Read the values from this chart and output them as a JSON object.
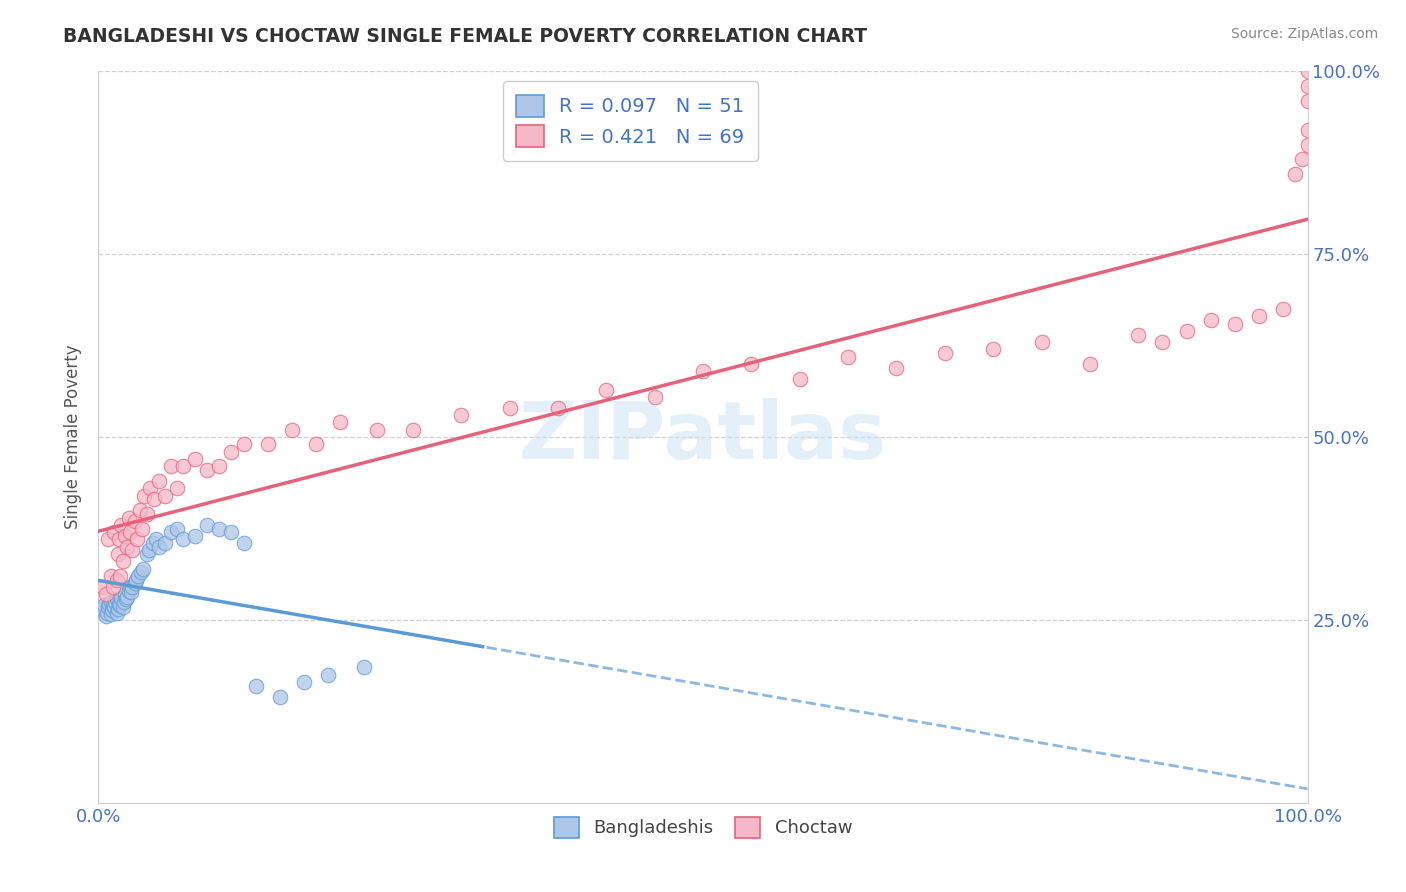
{
  "title": "BANGLADESHI VS CHOCTAW SINGLE FEMALE POVERTY CORRELATION CHART",
  "source": "Source: ZipAtlas.com",
  "ylabel": "Single Female Poverty",
  "watermark": "ZIPatlas",
  "blue_face": "#aec6e8",
  "blue_edge": "#5b9bd5",
  "pink_face": "#f4b8c8",
  "pink_edge": "#e8617a",
  "blue_line": "#5b9bd5",
  "pink_line": "#e8617a",
  "grid_color": "#d0d0d0",
  "tick_color": "#4472c4",
  "title_color": "#333333",
  "source_color": "#888888",
  "ylabel_color": "#555555",
  "legend_r1": "R = 0.097",
  "legend_n1": "N = 51",
  "legend_r2": "R = 0.421",
  "legend_n2": "N = 69",
  "blue_x": [
    0.003,
    0.005,
    0.006,
    0.007,
    0.008,
    0.009,
    0.01,
    0.01,
    0.011,
    0.012,
    0.013,
    0.014,
    0.015,
    0.015,
    0.016,
    0.017,
    0.018,
    0.019,
    0.02,
    0.021,
    0.022,
    0.023,
    0.024,
    0.025,
    0.026,
    0.027,
    0.028,
    0.03,
    0.031,
    0.033,
    0.035,
    0.037,
    0.04,
    0.042,
    0.045,
    0.048,
    0.05,
    0.055,
    0.06,
    0.065,
    0.07,
    0.08,
    0.09,
    0.1,
    0.11,
    0.12,
    0.13,
    0.15,
    0.17,
    0.19,
    0.22
  ],
  "blue_y": [
    0.265,
    0.27,
    0.255,
    0.26,
    0.268,
    0.272,
    0.258,
    0.275,
    0.263,
    0.27,
    0.268,
    0.275,
    0.26,
    0.278,
    0.265,
    0.272,
    0.27,
    0.28,
    0.268,
    0.275,
    0.285,
    0.278,
    0.282,
    0.29,
    0.295,
    0.288,
    0.295,
    0.3,
    0.305,
    0.31,
    0.315,
    0.32,
    0.34,
    0.345,
    0.355,
    0.36,
    0.35,
    0.355,
    0.37,
    0.375,
    0.36,
    0.365,
    0.38,
    0.375,
    0.37,
    0.355,
    0.16,
    0.145,
    0.165,
    0.175,
    0.185
  ],
  "pink_x": [
    0.004,
    0.006,
    0.008,
    0.01,
    0.012,
    0.013,
    0.015,
    0.016,
    0.017,
    0.018,
    0.019,
    0.02,
    0.022,
    0.024,
    0.025,
    0.026,
    0.028,
    0.03,
    0.032,
    0.034,
    0.036,
    0.038,
    0.04,
    0.043,
    0.046,
    0.05,
    0.055,
    0.06,
    0.065,
    0.07,
    0.08,
    0.09,
    0.1,
    0.11,
    0.12,
    0.14,
    0.16,
    0.18,
    0.2,
    0.23,
    0.26,
    0.3,
    0.34,
    0.38,
    0.42,
    0.46,
    0.5,
    0.54,
    0.58,
    0.62,
    0.66,
    0.7,
    0.74,
    0.78,
    0.82,
    0.86,
    0.88,
    0.9,
    0.92,
    0.94,
    0.96,
    0.98,
    0.99,
    0.995,
    1.0,
    1.0,
    1.0,
    1.0,
    1.0
  ],
  "pink_y": [
    0.295,
    0.285,
    0.36,
    0.31,
    0.295,
    0.37,
    0.305,
    0.34,
    0.36,
    0.31,
    0.38,
    0.33,
    0.365,
    0.35,
    0.39,
    0.37,
    0.345,
    0.385,
    0.36,
    0.4,
    0.375,
    0.42,
    0.395,
    0.43,
    0.415,
    0.44,
    0.42,
    0.46,
    0.43,
    0.46,
    0.47,
    0.455,
    0.46,
    0.48,
    0.49,
    0.49,
    0.51,
    0.49,
    0.52,
    0.51,
    0.51,
    0.53,
    0.54,
    0.54,
    0.565,
    0.555,
    0.59,
    0.6,
    0.58,
    0.61,
    0.595,
    0.615,
    0.62,
    0.63,
    0.6,
    0.64,
    0.63,
    0.645,
    0.66,
    0.655,
    0.665,
    0.675,
    0.86,
    0.88,
    0.9,
    0.92,
    0.96,
    0.98,
    1.0
  ],
  "xlim": [
    0.0,
    1.0
  ],
  "ylim": [
    0.0,
    1.0
  ],
  "ytick_positions": [
    0.25,
    0.5,
    0.75,
    1.0
  ],
  "ytick_labels": [
    "25.0%",
    "50.0%",
    "75.0%",
    "100.0%"
  ],
  "xtick_positions": [
    0.0,
    1.0
  ],
  "xtick_labels": [
    "0.0%",
    "100.0%"
  ]
}
